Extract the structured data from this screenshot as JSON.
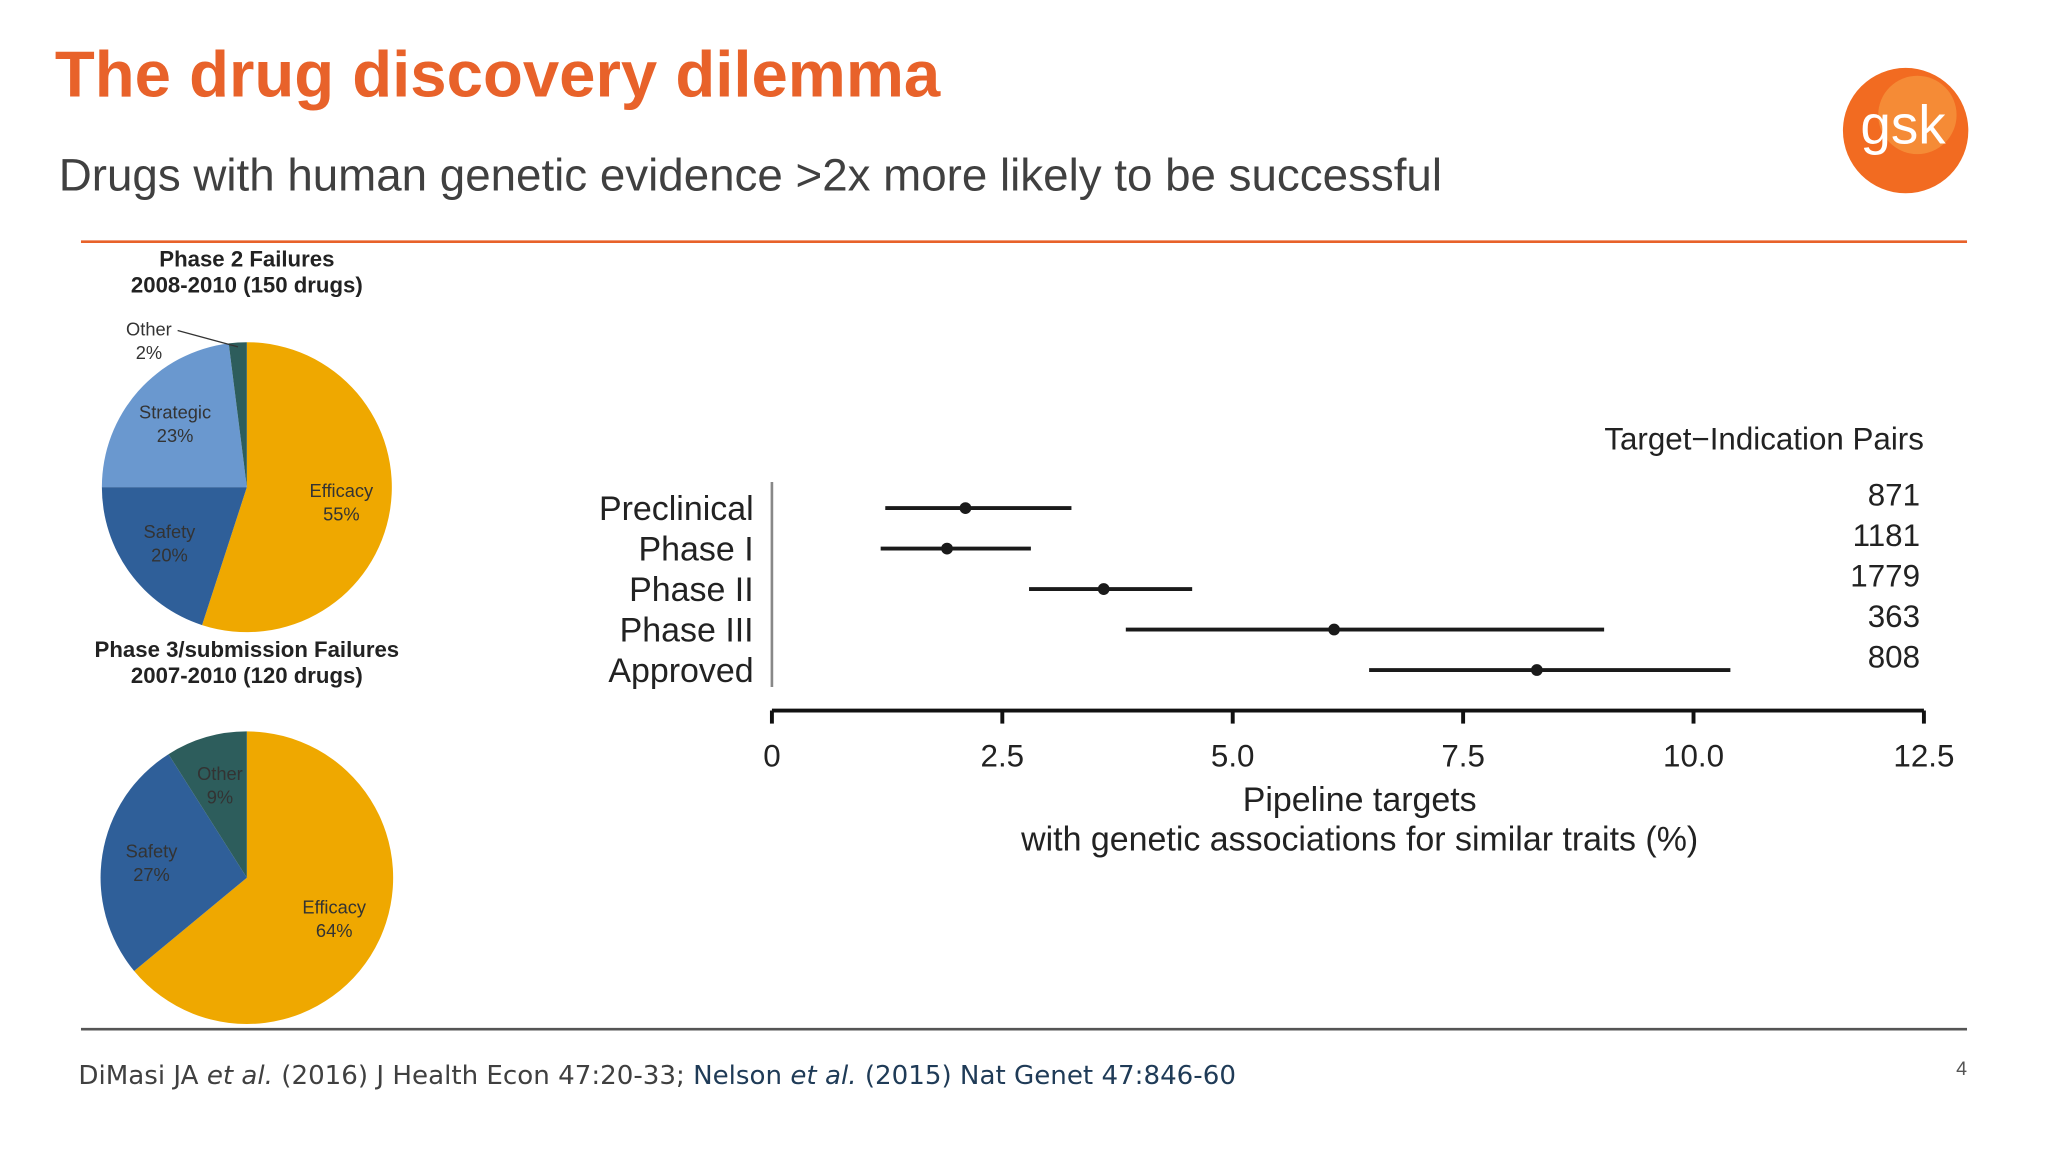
{
  "slide": {
    "title": "The drug discovery dilemma",
    "subtitle": "Drugs with human genetic evidence >2x more likely to be successful",
    "logo": "gsk",
    "footer": [
      "DiMasi JA ",
      "et al.",
      " (2016) J Health Econ 47:20-33; ",
      "Nelson ",
      "et al.",
      " (2015) Nat Genet 47:846-60"
    ],
    "page_number": "4"
  },
  "chart_data": [
    {
      "type": "pie",
      "title": "Phase 2 Failures",
      "subtitle": "2008-2010 (150 drugs)",
      "categories": [
        "Efficacy",
        "Safety",
        "Strategic",
        "Other"
      ],
      "values": [
        55,
        20,
        23,
        2
      ],
      "value_labels": [
        "55%",
        "20%",
        "23%",
        "2%"
      ],
      "colors": [
        "#efa800",
        "#2f5f99",
        "#6a98cf",
        "#2d5d5c"
      ]
    },
    {
      "type": "pie",
      "title": "Phase 3/submission Failures",
      "subtitle": "2007-2010 (120 drugs)",
      "categories": [
        "Efficacy",
        "Safety",
        "Other"
      ],
      "values": [
        64,
        27,
        9
      ],
      "value_labels": [
        "64%",
        "27%",
        "9%"
      ],
      "colors": [
        "#efa800",
        "#2f5f99",
        "#2d5d5c"
      ]
    },
    {
      "type": "forest",
      "categories": [
        "Preclinical",
        "Phase I",
        "Phase II",
        "Phase III",
        "Approved"
      ],
      "values": [
        2.1,
        1.9,
        3.6,
        6.1,
        8.3
      ],
      "lower": [
        1.23,
        1.18,
        2.79,
        3.84,
        6.48
      ],
      "upper": [
        3.25,
        2.81,
        4.56,
        9.03,
        10.4
      ],
      "xlim": [
        0,
        12.5
      ],
      "xticks": [
        0,
        2.5,
        {
          "value": 5,
          "label": "5.0"
        },
        7.5,
        {
          "value": 10,
          "label": "10.0"
        },
        12.5
      ],
      "xlabel": [
        "Pipeline targets",
        "with genetic associations for similar traits (%)"
      ],
      "pairs_title": "Target−Indication Pairs",
      "pairs": [
        871,
        1181,
        1779,
        363,
        808
      ],
      "color": "#1a1a1a"
    }
  ]
}
